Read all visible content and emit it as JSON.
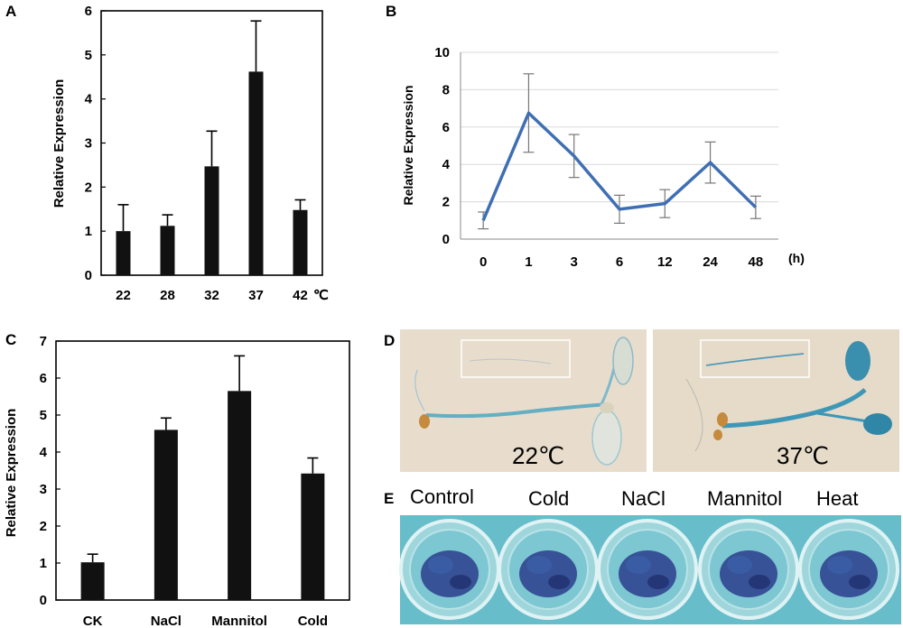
{
  "panels": {
    "A": "A",
    "B": "B",
    "C": "C",
    "D": "D",
    "E": "E"
  },
  "chart_data": [
    {
      "id": "A",
      "type": "bar",
      "categories": [
        "22",
        "28",
        "32",
        "37",
        "42"
      ],
      "values": [
        1.0,
        1.12,
        2.47,
        4.62,
        1.48
      ],
      "errors": [
        0.6,
        0.25,
        0.8,
        1.15,
        0.23
      ],
      "ylabel": "Relative Expression",
      "xlabel": "",
      "unit_label": "℃",
      "ylim": [
        0,
        6
      ],
      "yticks": [
        "0",
        "1",
        "2",
        "3",
        "4",
        "5",
        "6"
      ]
    },
    {
      "id": "B",
      "type": "line",
      "categories": [
        "0",
        "1",
        "3",
        "6",
        "12",
        "24",
        "48"
      ],
      "values": [
        1.0,
        6.75,
        4.45,
        1.6,
        1.9,
        4.1,
        1.7
      ],
      "errors": [
        0.45,
        2.1,
        1.15,
        0.75,
        0.75,
        1.1,
        0.6
      ],
      "ylabel": "Relative Expression",
      "unit_label": "(h)",
      "ylim": [
        0,
        10
      ],
      "yticks": [
        "0",
        "2",
        "4",
        "6",
        "8",
        "10"
      ],
      "grid": true,
      "line_color": "#3f6fb3"
    },
    {
      "id": "C",
      "type": "bar",
      "categories": [
        "CK",
        "NaCl",
        "Mannitol",
        "Cold"
      ],
      "values": [
        1.02,
        4.6,
        5.65,
        3.42
      ],
      "errors": [
        0.22,
        0.32,
        0.95,
        0.42
      ],
      "ylabel": "Relative Expression",
      "ylim": [
        0,
        7
      ],
      "yticks": [
        "0",
        "1",
        "2",
        "3",
        "4",
        "5",
        "6",
        "7"
      ]
    }
  ],
  "photos": {
    "D": {
      "labels": [
        "22℃",
        "37℃"
      ],
      "stain_color": "#4a9ab3",
      "background": "#e7dccb"
    },
    "E": {
      "labels": [
        "Control",
        "Cold",
        "NaCl",
        "Mannitol",
        "Heat"
      ],
      "plate_color": "#5fb8c6",
      "tissue_color": "#2b3d8c"
    }
  }
}
